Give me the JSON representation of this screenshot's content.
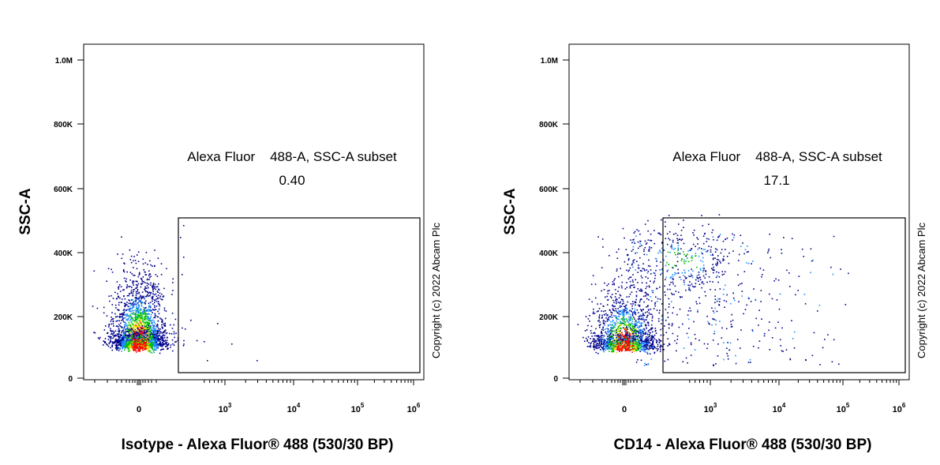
{
  "chart_data": [
    {
      "type": "scatter",
      "panel": "isotype",
      "xlabel": "Isotype - Alexa Fluor® 488 (530/30 BP)",
      "ylabel": "SSC-A",
      "yticks": [
        {
          "label": "0",
          "value": 0
        },
        {
          "label": "200K",
          "value": 200000
        },
        {
          "label": "400K",
          "value": 400000
        },
        {
          "label": "600K",
          "value": 600000
        },
        {
          "label": "800K",
          "value": 800000
        },
        {
          "label": "1.0M",
          "value": 1000000
        }
      ],
      "xticks": [
        {
          "label": "0",
          "exp": ""
        },
        {
          "label": "10",
          "exp": "3"
        },
        {
          "label": "10",
          "exp": "4"
        },
        {
          "label": "10",
          "exp": "5"
        },
        {
          "label": "10",
          "exp": "6"
        }
      ],
      "ylim": [
        0,
        1000000
      ],
      "xscale": "biexponential",
      "gate": {
        "name": "Alexa Fluor    488-A, SSC-A subset",
        "value": "0.40",
        "x_range": [
          "~300",
          "1000000"
        ],
        "y_range": [
          20000,
          500000
        ]
      },
      "populations": [
        {
          "name": "main",
          "x_center": 0,
          "y_center": 100000,
          "count": 2600
        },
        {
          "name": "gate_events",
          "count": 7
        }
      ]
    },
    {
      "type": "scatter",
      "panel": "cd14",
      "xlabel": "CD14 - Alexa Fluor® 488 (530/30 BP)",
      "ylabel": "SSC-A",
      "yticks": [
        {
          "label": "0",
          "value": 0
        },
        {
          "label": "200K",
          "value": 200000
        },
        {
          "label": "400K",
          "value": 400000
        },
        {
          "label": "600K",
          "value": 600000
        },
        {
          "label": "800K",
          "value": 800000
        },
        {
          "label": "1.0M",
          "value": 1000000
        }
      ],
      "xticks": [
        {
          "label": "0",
          "exp": ""
        },
        {
          "label": "10",
          "exp": "3"
        },
        {
          "label": "10",
          "exp": "4"
        },
        {
          "label": "10",
          "exp": "5"
        },
        {
          "label": "10",
          "exp": "6"
        }
      ],
      "ylim": [
        0,
        1000000
      ],
      "xscale": "biexponential",
      "gate": {
        "name": "Alexa Fluor    488-A, SSC-A subset",
        "value": "17.1",
        "x_range": [
          "~300",
          "1000000"
        ],
        "y_range": [
          20000,
          500000
        ]
      },
      "populations": [
        {
          "name": "main",
          "x_center": 0,
          "y_center": 100000,
          "count": 1700
        },
        {
          "name": "cd14_positive",
          "x_center": 600,
          "y_center": 370000,
          "count": 330
        }
      ]
    }
  ],
  "copyright": "Copyright (c) 2022 Abcam Plc",
  "colors": {
    "density_low": "#00008b",
    "density_mid_low": "#1e90ff",
    "density_mid": "#00c000",
    "density_high": "#e0e000",
    "density_peak": "#ff0000",
    "axis": "#000000"
  }
}
